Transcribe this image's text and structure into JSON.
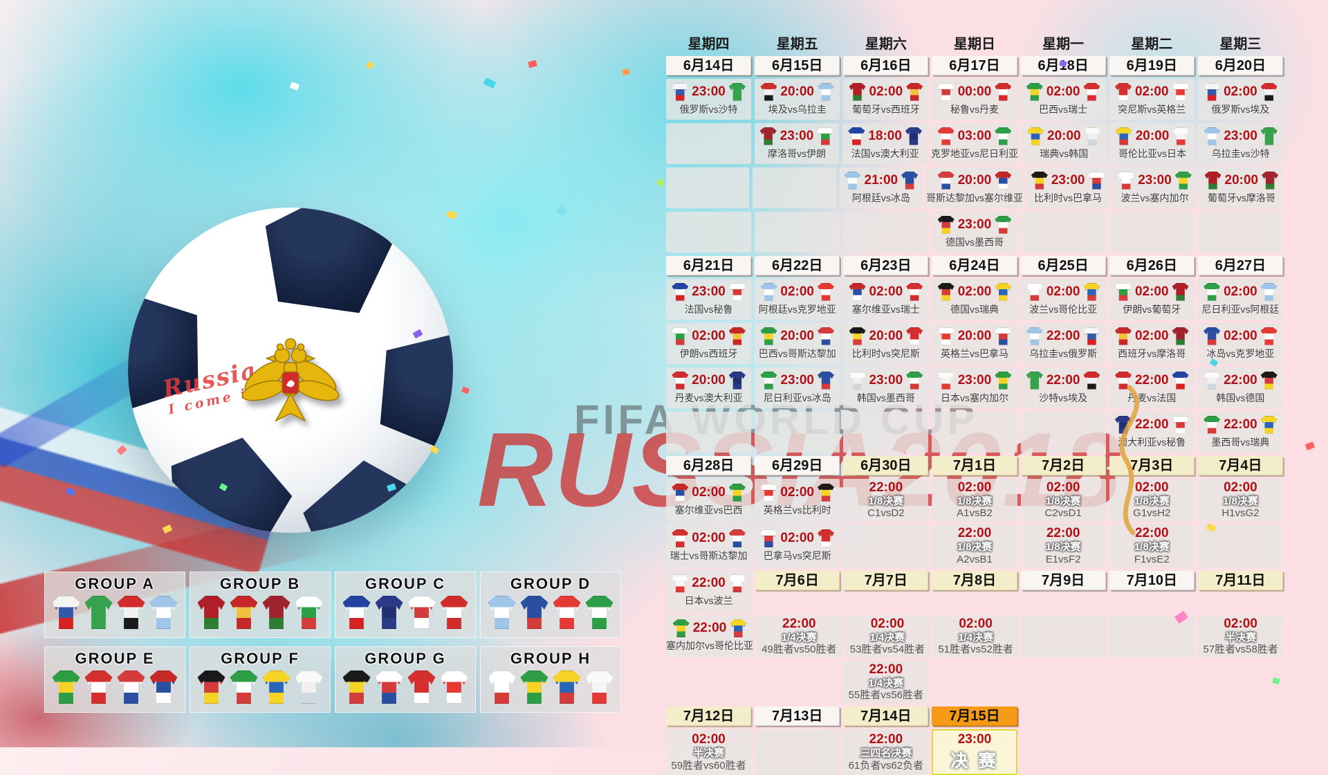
{
  "watermark": {
    "title": "FIFA WORLD CUP",
    "subtitle": "RUSSIA2018"
  },
  "ball": {
    "line1": "Russia",
    "line2": "I come in"
  },
  "accents": {
    "time_red": "#b01016",
    "final_orange": "#f49a15",
    "knockout_cream": "#f3edc9",
    "pentagon_navy": "#101c38"
  },
  "teams": {
    "俄罗斯": [
      "#f5f5f5",
      "#3558a8",
      "#d62222"
    ],
    "沙特": [
      "#37a24e",
      "#37a24e",
      "#37a24e"
    ],
    "埃及": [
      "#d22b2b",
      "#f2f2f2",
      "#1a1a1a"
    ],
    "乌拉圭": [
      "#9fc6e8",
      "#ffffff",
      "#9fc6e8"
    ],
    "葡萄牙": [
      "#b01e28",
      "#b01e28",
      "#2e7d32"
    ],
    "西班牙": [
      "#c62828",
      "#f2c23e",
      "#c62828"
    ],
    "秘鲁": [
      "#ffffff",
      "#d43b3b",
      "#ffffff"
    ],
    "丹麦": [
      "#d22b2b",
      "#ffffff",
      "#d22b2b"
    ],
    "巴西": [
      "#2e9e46",
      "#f5d327",
      "#2e9e46"
    ],
    "瑞士": [
      "#d32f2f",
      "#ffffff",
      "#d32f2f"
    ],
    "突尼斯": [
      "#d32f2f",
      "#d32f2f",
      "#ffffff"
    ],
    "英格兰": [
      "#ffffff",
      "#e53935",
      "#ffffff"
    ],
    "摩洛哥": [
      "#a02430",
      "#a02430",
      "#2e7d32"
    ],
    "伊朗": [
      "#ffffff",
      "#2e9e46",
      "#d43b3b"
    ],
    "法国": [
      "#2244a0",
      "#ffffff",
      "#d62222"
    ],
    "澳大利亚": [
      "#2a3a86",
      "#223070",
      "#2a3a86"
    ],
    "克罗地亚": [
      "#e53935",
      "#ffffff",
      "#e53935"
    ],
    "尼日利亚": [
      "#2e9e46",
      "#ffffff",
      "#2e9e46"
    ],
    "瑞典": [
      "#f5d327",
      "#2a66b8",
      "#f5d327"
    ],
    "韩国": [
      "#fafafa",
      "#f0f0f0",
      "#cfd8dc"
    ],
    "哥伦比亚": [
      "#f5d327",
      "#2a66b8",
      "#d43b3b"
    ],
    "日本": [
      "#fafafa",
      "#f5f5f5",
      "#e53935"
    ],
    "阿根廷": [
      "#9fc6e8",
      "#ffffff",
      "#9fc6e8"
    ],
    "冰岛": [
      "#2a4fa0",
      "#2a4fa0",
      "#d43b3b"
    ],
    "哥斯达黎加": [
      "#d43b3b",
      "#ffffff",
      "#2a4fa0"
    ],
    "塞尔维亚": [
      "#c62828",
      "#2a4fa0",
      "#ffffff"
    ],
    "比利时": [
      "#1a1a1a",
      "#f5d327",
      "#d43b3b"
    ],
    "巴拿马": [
      "#ffffff",
      "#d43b3b",
      "#2a4fa0"
    ],
    "波兰": [
      "#ffffff",
      "#ffffff",
      "#d43b3b"
    ],
    "塞内加尔": [
      "#2e9e46",
      "#f5d327",
      "#2e9e46"
    ],
    "德国": [
      "#1a1a1a",
      "#d43b3b",
      "#f5d327"
    ],
    "墨西哥": [
      "#2e9e46",
      "#ffffff",
      "#d43b3b"
    ]
  },
  "schedule": {
    "weekdays": [
      "星期四",
      "星期五",
      "星期六",
      "星期日",
      "星期一",
      "星期二",
      "星期三"
    ],
    "sections": [
      {
        "dates": [
          {
            "col": 1,
            "l": "6月14日",
            "v": "p"
          },
          {
            "col": 2,
            "l": "6月15日",
            "v": "p"
          },
          {
            "col": 3,
            "l": "6月16日",
            "v": "p"
          },
          {
            "col": 4,
            "l": "6月17日",
            "v": "p"
          },
          {
            "col": 5,
            "l": "6月18日",
            "v": "p"
          },
          {
            "col": 6,
            "l": "6月19日",
            "v": "p"
          },
          {
            "col": 7,
            "l": "6月20日",
            "v": "p"
          }
        ],
        "rows": [
          [
            {
              "t": "23:00",
              "m": "俄罗斯vs沙特"
            },
            {
              "t": "20:00",
              "m": "埃及vs乌拉圭"
            },
            {
              "t": "02:00",
              "m": "葡萄牙vs西班牙"
            },
            {
              "t": "00:00",
              "m": "秘鲁vs丹麦"
            },
            {
              "t": "02:00",
              "m": "巴西vs瑞士"
            },
            {
              "t": "02:00",
              "m": "突尼斯vs英格兰"
            },
            {
              "t": "02:00",
              "m": "俄罗斯vs埃及"
            }
          ],
          [
            {},
            {
              "t": "23:00",
              "m": "摩洛哥vs伊朗"
            },
            {
              "t": "18:00",
              "m": "法国vs澳大利亚"
            },
            {
              "t": "03:00",
              "m": "克罗地亚vs尼日利亚"
            },
            {
              "t": "20:00",
              "m": "瑞典vs韩国"
            },
            {
              "t": "20:00",
              "m": "哥伦比亚vs日本"
            },
            {
              "t": "23:00",
              "m": "乌拉圭vs沙特"
            }
          ],
          [
            {},
            {},
            {
              "t": "21:00",
              "m": "阿根廷vs冰岛"
            },
            {
              "t": "20:00",
              "m": "哥斯达黎加vs塞尔维亚"
            },
            {
              "t": "23:00",
              "m": "比利时vs巴拿马"
            },
            {
              "t": "23:00",
              "m": "波兰vs塞内加尔"
            },
            {
              "t": "20:00",
              "m": "葡萄牙vs摩洛哥"
            }
          ],
          [
            {},
            {},
            {},
            {
              "t": "23:00",
              "m": "德国vs墨西哥"
            },
            {},
            {},
            {}
          ]
        ]
      },
      {
        "dates": [
          {
            "col": 1,
            "l": "6月21日",
            "v": "p"
          },
          {
            "col": 2,
            "l": "6月22日",
            "v": "p"
          },
          {
            "col": 3,
            "l": "6月23日",
            "v": "p"
          },
          {
            "col": 4,
            "l": "6月24日",
            "v": "p"
          },
          {
            "col": 5,
            "l": "6月25日",
            "v": "p"
          },
          {
            "col": 6,
            "l": "6月26日",
            "v": "p"
          },
          {
            "col": 7,
            "l": "6月27日",
            "v": "p"
          }
        ],
        "rows": [
          [
            {
              "t": "23:00",
              "m": "法国vs秘鲁"
            },
            {
              "t": "02:00",
              "m": "阿根廷vs克罗地亚"
            },
            {
              "t": "02:00",
              "m": "塞尔维亚vs瑞士"
            },
            {
              "t": "02:00",
              "m": "德国vs瑞典"
            },
            {
              "t": "02:00",
              "m": "波兰vs哥伦比亚"
            },
            {
              "t": "02:00",
              "m": "伊朗vs葡萄牙"
            },
            {
              "t": "02:00",
              "m": "尼日利亚vs阿根廷"
            }
          ],
          [
            {
              "t": "02:00",
              "m": "伊朗vs西班牙"
            },
            {
              "t": "20:00",
              "m": "巴西vs哥斯达黎加"
            },
            {
              "t": "20:00",
              "m": "比利时vs突尼斯"
            },
            {
              "t": "20:00",
              "m": "英格兰vs巴拿马"
            },
            {
              "t": "22:00",
              "m": "乌拉圭vs俄罗斯"
            },
            {
              "t": "02:00",
              "m": "西班牙vs摩洛哥"
            },
            {
              "t": "02:00",
              "m": "冰岛vs克罗地亚"
            }
          ],
          [
            {
              "t": "20:00",
              "m": "丹麦vs澳大利亚"
            },
            {
              "t": "23:00",
              "m": "尼日利亚vs冰岛"
            },
            {
              "t": "23:00",
              "m": "韩国vs墨西哥"
            },
            {
              "t": "23:00",
              "m": "日本vs塞内加尔"
            },
            {
              "t": "22:00",
              "m": "沙特vs埃及"
            },
            {
              "t": "22:00",
              "m": "丹麦vs法国"
            },
            {
              "t": "22:00",
              "m": "韩国vs德国"
            }
          ],
          [
            {},
            {},
            {},
            {},
            {},
            {
              "t": "22:00",
              "m": "澳大利亚vs秘鲁"
            },
            {
              "t": "22:00",
              "m": "墨西哥vs瑞典"
            }
          ]
        ]
      },
      {
        "dates": [
          {
            "col": 1,
            "l": "6月28日",
            "v": "p"
          },
          {
            "col": 2,
            "l": "6月29日",
            "v": "p"
          },
          {
            "col": 3,
            "l": "6月30日",
            "v": "k"
          },
          {
            "col": 4,
            "l": "7月1日",
            "v": "k"
          },
          {
            "col": 5,
            "l": "7月2日",
            "v": "k"
          },
          {
            "col": 6,
            "l": "7月3日",
            "v": "k"
          },
          {
            "col": 7,
            "l": "7月4日",
            "v": "k"
          }
        ],
        "rows": [
          [
            {
              "t": "02:00",
              "m": "塞尔维亚vs巴西"
            },
            {
              "t": "02:00",
              "m": "英格兰vs比利时"
            },
            {
              "t": "22:00",
              "s": "1/8决赛",
              "m": "C1vsD2"
            },
            {
              "t": "02:00",
              "s": "1/8决赛",
              "m": "A1vsB2"
            },
            {
              "t": "02:00",
              "s": "1/8决赛",
              "m": "C2vsD1"
            },
            {
              "t": "02:00",
              "s": "1/8决赛",
              "m": "G1vsH2"
            },
            {
              "t": "02:00",
              "s": "1/8决赛",
              "m": "H1vsG2"
            }
          ],
          [
            {
              "t": "02:00",
              "m": "瑞士vs哥斯达黎加"
            },
            {
              "t": "02:00",
              "m": "巴拿马vs突尼斯"
            },
            {},
            {
              "t": "22:00",
              "s": "1/8决赛",
              "m": "A2vsB1"
            },
            {
              "t": "22:00",
              "s": "1/8决赛",
              "m": "E1vsF2"
            },
            {
              "t": "22:00",
              "s": "1/8决赛",
              "m": "F1vsE2"
            },
            {}
          ]
        ]
      },
      {
        "lead": {
          "t": "22:00",
          "m": "日本vs波兰"
        },
        "dates": [
          {
            "col": 2,
            "l": "7月6日",
            "v": "k"
          },
          {
            "col": 3,
            "l": "7月7日",
            "v": "k"
          },
          {
            "col": 4,
            "l": "7月8日",
            "v": "k"
          },
          {
            "col": 5,
            "l": "7月9日",
            "v": "p"
          },
          {
            "col": 6,
            "l": "7月10日",
            "v": "p"
          },
          {
            "col": 7,
            "l": "7月11日",
            "v": "k"
          }
        ],
        "rows": [
          [
            {
              "t": "22:00",
              "m": "塞内加尔vs哥伦比亚"
            },
            {
              "t": "22:00",
              "s": "1/4决赛",
              "m": "49胜者vs50胜者"
            },
            {
              "t": "02:00",
              "s": "1/4决赛",
              "m": "53胜者vs54胜者"
            },
            {
              "t": "02:00",
              "s": "1/4决赛",
              "m": "51胜者vs52胜者"
            },
            {},
            {},
            {
              "t": "02:00",
              "s": "半决赛",
              "m": "57胜者vs58胜者"
            }
          ],
          [
            null,
            null,
            {
              "t": "22:00",
              "s": "1/4决赛",
              "m": "55胜者vs56胜者"
            },
            null,
            null,
            null,
            null
          ]
        ]
      },
      {
        "dates": [
          {
            "col": 1,
            "l": "7月12日",
            "v": "k"
          },
          {
            "col": 2,
            "l": "7月13日",
            "v": "p"
          },
          {
            "col": 3,
            "l": "7月14日",
            "v": "k"
          },
          {
            "col": 4,
            "l": "7月15日",
            "v": "f"
          }
        ],
        "rows": [
          [
            {
              "t": "02:00",
              "s": "半决赛",
              "m": "59胜者vs60胜者"
            },
            {},
            {
              "t": "22:00",
              "s": "三四名决赛",
              "m": "61负者vs62负者"
            },
            {
              "t": "23:00",
              "f": "决 赛"
            },
            null,
            null,
            null
          ]
        ]
      }
    ]
  },
  "groups": [
    {
      "label": "GROUP A",
      "teams": [
        "俄罗斯",
        "沙特",
        "埃及",
        "乌拉圭"
      ]
    },
    {
      "label": "GROUP B",
      "teams": [
        "葡萄牙",
        "西班牙",
        "摩洛哥",
        "伊朗"
      ]
    },
    {
      "label": "GROUP C",
      "teams": [
        "法国",
        "澳大利亚",
        "秘鲁",
        "丹麦"
      ]
    },
    {
      "label": "GROUP D",
      "teams": [
        "阿根廷",
        "冰岛",
        "克罗地亚",
        "尼日利亚"
      ]
    },
    {
      "label": "GROUP E",
      "teams": [
        "巴西",
        "瑞士",
        "哥斯达黎加",
        "塞尔维亚"
      ]
    },
    {
      "label": "GROUP F",
      "teams": [
        "德国",
        "墨西哥",
        "瑞典",
        "韩国"
      ]
    },
    {
      "label": "GROUP G",
      "teams": [
        "比利时",
        "巴拿马",
        "突尼斯",
        "英格兰"
      ]
    },
    {
      "label": "GROUP H",
      "teams": [
        "波兰",
        "塞内加尔",
        "哥伦比亚",
        "日本"
      ]
    }
  ]
}
